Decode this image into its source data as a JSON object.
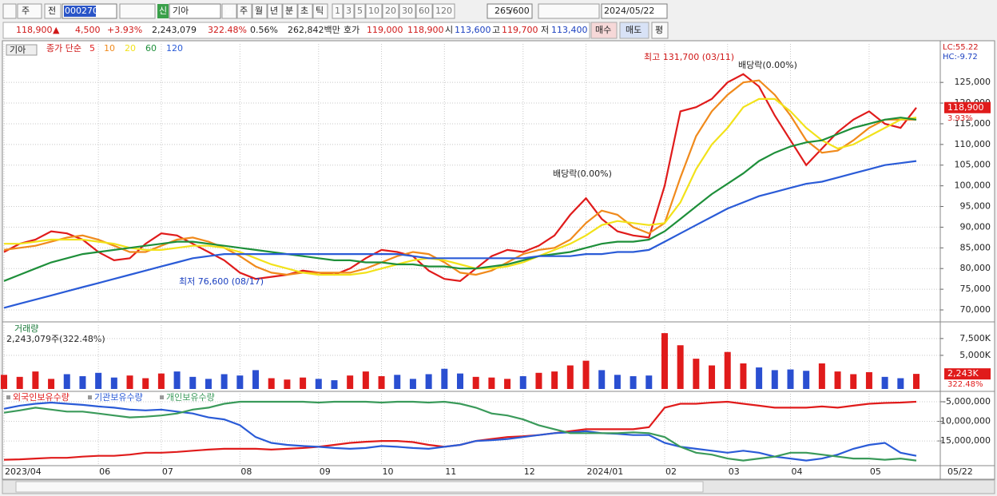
{
  "toolbar": {
    "market": "주",
    "prev": "전",
    "code": "000270",
    "badge": "신",
    "name": "기아",
    "periods": [
      "일",
      "주",
      "월",
      "년",
      "분",
      "초",
      "틱"
    ],
    "intervals": [
      "1",
      "3",
      "5",
      "10",
      "20",
      "30",
      "60",
      "120"
    ],
    "count": "265",
    "max": "/600",
    "date": "2024/05/22"
  },
  "quote": {
    "price": "118,900",
    "arrow": "▲",
    "change": "4,500",
    "pct": "+3.93%",
    "volume": "2,243,079",
    "vol_ratio": "322.48%",
    "turnover": "0.56%",
    "amount": "262,842백만",
    "ask_label": "호가",
    "ask": "119,000",
    "bid": "118,900",
    "open_label": "시",
    "open": "113,600",
    "high_label": "고",
    "high": "119,700",
    "low_label": "저",
    "low": "113,400",
    "buy": "매수",
    "sell": "매도",
    "avg": "평"
  },
  "chart_data": [
    {
      "type": "line",
      "title": "기아",
      "method": "종가 단순",
      "lc": "LC:55.22",
      "hc": "HC:-9.72",
      "annotations": [
        "최고 131,700 (03/11)",
        "배당락(0.00%)",
        "배당락(0.00%)",
        "최저 76,600 (08/17)"
      ],
      "current": {
        "value": 118900,
        "label": "118,900"
      },
      "current_change": "3.93%",
      "ylim": [
        67300,
        134300
      ],
      "yticks": [
        {
          "value": 70000,
          "label": "70,000"
        },
        {
          "value": 75000,
          "label": "75,000"
        },
        {
          "value": 80000,
          "label": "80,000"
        },
        {
          "value": 85000,
          "label": "85,000"
        },
        {
          "value": 90000,
          "label": "90,000"
        },
        {
          "value": 95000,
          "label": "95,000"
        },
        {
          "value": 100000,
          "label": "100,000"
        },
        {
          "value": 105000,
          "label": "105,000"
        },
        {
          "value": 110000,
          "label": "110,000"
        },
        {
          "value": 115000,
          "label": "115,000"
        },
        {
          "value": 120000,
          "label": "120,000"
        },
        {
          "value": 125000,
          "label": "125,000"
        }
      ],
      "grid": true,
      "series": [
        {
          "name": "5",
          "color": "#e01b1b",
          "values": [
            84000,
            86000,
            87000,
            89000,
            88500,
            87000,
            84000,
            82000,
            82500,
            86000,
            88500,
            88000,
            86000,
            84000,
            82000,
            79000,
            77500,
            78000,
            78500,
            79500,
            79000,
            78500,
            80000,
            82500,
            84500,
            84000,
            83000,
            79500,
            77500,
            77000,
            80000,
            83000,
            84500,
            84000,
            85500,
            88000,
            93000,
            97000,
            92000,
            89000,
            88000,
            87500,
            100000,
            118000,
            119000,
            121000,
            125000,
            127000,
            124000,
            117000,
            111000,
            105000,
            109000,
            113000,
            116000,
            118000,
            115000,
            114000,
            118900
          ]
        },
        {
          "name": "10",
          "color": "#f08a1c",
          "values": [
            84500,
            85000,
            85500,
            86500,
            87500,
            88000,
            87000,
            85500,
            84000,
            84000,
            85500,
            87000,
            87500,
            86500,
            85000,
            83000,
            80500,
            79000,
            78500,
            79000,
            79000,
            79000,
            79000,
            80000,
            81500,
            83000,
            84000,
            83500,
            81500,
            79000,
            78500,
            79500,
            81500,
            83500,
            84500,
            85000,
            87000,
            91000,
            94000,
            93000,
            90000,
            88500,
            91000,
            102000,
            112000,
            118000,
            122000,
            125000,
            125500,
            122000,
            117000,
            111000,
            108000,
            108500,
            111000,
            114000,
            116000,
            116000,
            116000
          ]
        },
        {
          "name": "20",
          "color": "#f2e21a",
          "values": [
            86000,
            86000,
            86500,
            87000,
            87000,
            87000,
            86500,
            86000,
            85000,
            84500,
            84500,
            85000,
            85500,
            85500,
            85000,
            84000,
            82500,
            81000,
            80000,
            79000,
            78500,
            78500,
            78500,
            79000,
            80000,
            81000,
            82000,
            82500,
            82000,
            81000,
            80000,
            80000,
            80500,
            81500,
            83000,
            84500,
            86000,
            88000,
            90500,
            91500,
            91000,
            90500,
            91000,
            96000,
            104000,
            110000,
            114000,
            119000,
            121000,
            121000,
            118000,
            114000,
            111000,
            109000,
            110000,
            112000,
            114000,
            116000,
            116500
          ]
        },
        {
          "name": "60",
          "color": "#1e8f3a",
          "values": [
            77000,
            78500,
            80000,
            81500,
            82500,
            83500,
            84000,
            84500,
            85000,
            85500,
            86000,
            86500,
            86500,
            86000,
            85500,
            85000,
            84500,
            84000,
            83500,
            83000,
            82500,
            82000,
            82000,
            81500,
            81500,
            81000,
            81000,
            80500,
            80500,
            80000,
            80000,
            80500,
            81000,
            82000,
            83000,
            83500,
            84000,
            85000,
            86000,
            86500,
            86500,
            87000,
            89000,
            92000,
            95000,
            98000,
            100500,
            103000,
            106000,
            108000,
            109500,
            110500,
            111000,
            112500,
            114000,
            115000,
            116000,
            116500,
            116000
          ]
        },
        {
          "name": "120",
          "color": "#2a5bd7",
          "values": [
            70500,
            71500,
            72500,
            73500,
            74500,
            75500,
            76500,
            77500,
            78500,
            79500,
            80500,
            81500,
            82500,
            83000,
            83500,
            83500,
            83500,
            83500,
            83500,
            83500,
            83500,
            83500,
            83500,
            83500,
            83500,
            83500,
            83000,
            82500,
            82500,
            82500,
            82500,
            82500,
            82500,
            82500,
            83000,
            83000,
            83000,
            83500,
            83500,
            84000,
            84000,
            84500,
            86500,
            88500,
            90500,
            92500,
            94500,
            96000,
            97500,
            98500,
            99500,
            100500,
            101000,
            102000,
            103000,
            104000,
            105000,
            105500,
            106000
          ]
        }
      ]
    },
    {
      "type": "bar",
      "title": "거래량",
      "subtitle": "2,243,079주(322.48%)",
      "up_color": "#e01b1b",
      "down_color": "#2a4fd1",
      "current": {
        "value": 2243,
        "label": "2,243K"
      },
      "current_change": "322.48%",
      "ylim": [
        0,
        9500
      ],
      "yticks": [
        {
          "value": 5000,
          "label": "5,000K"
        },
        {
          "value": 7500,
          "label": "7,500K"
        }
      ],
      "grid": true,
      "values": [
        2100,
        1800,
        2600,
        1500,
        2200,
        1900,
        2400,
        1700,
        2000,
        1600,
        2300,
        2600,
        1800,
        1500,
        2200,
        2000,
        2800,
        1600,
        1400,
        1700,
        1500,
        1300,
        2000,
        2600,
        1900,
        2100,
        1500,
        2200,
        3000,
        2300,
        1800,
        1700,
        1500,
        1900,
        2400,
        2600,
        3500,
        4200,
        2800,
        2100,
        1900,
        2000,
        8300,
        6500,
        4500,
        3500,
        5500,
        3800,
        3200,
        2800,
        2900,
        2700,
        3800,
        2600,
        2200,
        2500,
        1800,
        1600,
        2243
      ]
    },
    {
      "type": "line",
      "categories": [
        "2023/04",
        null,
        null,
        null,
        null,
        null,
        "06",
        null,
        null,
        null,
        "07",
        null,
        null,
        null,
        null,
        "08",
        null,
        null,
        null,
        null,
        "09",
        null,
        null,
        null,
        "10",
        null,
        null,
        null,
        "11",
        null,
        null,
        null,
        null,
        "12",
        null,
        null,
        null,
        "2024/01",
        null,
        null,
        null,
        null,
        "02",
        null,
        null,
        null,
        "03",
        null,
        null,
        null,
        "04",
        null,
        null,
        null,
        null,
        "05",
        null,
        null,
        null
      ],
      "x_end_label": "05/22",
      "ylim": [
        -21100000,
        -2960000
      ],
      "yticks": [
        {
          "value": -15000000,
          "label": "-15,000,000"
        },
        {
          "value": -10000000,
          "label": "-10,000,000"
        },
        {
          "value": -5000000,
          "label": "-5,000,000"
        }
      ],
      "grid": true,
      "series": [
        {
          "name": "외국인보유수량",
          "color": "#e01b1b",
          "values": [
            -19800000,
            -19700000,
            -19500000,
            -19300000,
            -19300000,
            -19000000,
            -18800000,
            -18800000,
            -18500000,
            -18000000,
            -18000000,
            -17800000,
            -17500000,
            -17200000,
            -17000000,
            -17000000,
            -17000000,
            -17200000,
            -17000000,
            -16800000,
            -16500000,
            -16000000,
            -15500000,
            -15200000,
            -15000000,
            -15000000,
            -15300000,
            -16000000,
            -16500000,
            -16000000,
            -15000000,
            -14500000,
            -14000000,
            -13800000,
            -13500000,
            -13000000,
            -12500000,
            -12000000,
            -12000000,
            -12000000,
            -12000000,
            -11500000,
            -6500000,
            -5500000,
            -5500000,
            -5200000,
            -5000000,
            -5500000,
            -6000000,
            -6500000,
            -6500000,
            -6500000,
            -6200000,
            -6500000,
            -6000000,
            -5500000,
            -5300000,
            -5200000,
            -5000000
          ]
        },
        {
          "name": "기관보유수량",
          "color": "#2a5bd7",
          "values": [
            -6800000,
            -6000000,
            -5500000,
            -5200000,
            -5500000,
            -5800000,
            -6200000,
            -6500000,
            -7000000,
            -7200000,
            -7000000,
            -7500000,
            -8000000,
            -9000000,
            -9500000,
            -11000000,
            -14000000,
            -15500000,
            -16000000,
            -16300000,
            -16500000,
            -16800000,
            -17000000,
            -16800000,
            -16300000,
            -16500000,
            -16800000,
            -17000000,
            -16500000,
            -16000000,
            -15000000,
            -14800000,
            -14500000,
            -14000000,
            -13500000,
            -13000000,
            -12800000,
            -12500000,
            -13000000,
            -13200000,
            -13500000,
            -13500000,
            -15500000,
            -16500000,
            -17000000,
            -17500000,
            -18000000,
            -17500000,
            -18000000,
            -19000000,
            -19500000,
            -20000000,
            -19500000,
            -18500000,
            -17000000,
            -16000000,
            -15500000,
            -18000000,
            -18800000
          ]
        },
        {
          "name": "개인보유수량",
          "color": "#3a9a5a",
          "values": [
            -7800000,
            -7200000,
            -6500000,
            -7000000,
            -7500000,
            -7500000,
            -8000000,
            -8500000,
            -9000000,
            -8800000,
            -8500000,
            -8000000,
            -7000000,
            -6500000,
            -5500000,
            -5000000,
            -5000000,
            -5000000,
            -5000000,
            -5000000,
            -5200000,
            -5000000,
            -5000000,
            -5000000,
            -5200000,
            -5000000,
            -5000000,
            -5200000,
            -5000000,
            -5500000,
            -6500000,
            -8000000,
            -8500000,
            -9500000,
            -11000000,
            -12000000,
            -13000000,
            -13000000,
            -13000000,
            -13000000,
            -12800000,
            -13000000,
            -14000000,
            -16500000,
            -18000000,
            -18500000,
            -19500000,
            -20000000,
            -19500000,
            -19000000,
            -18000000,
            -18000000,
            -18500000,
            -19000000,
            -19500000,
            -19500000,
            -19800000,
            -19500000,
            -20000000
          ]
        }
      ]
    }
  ]
}
